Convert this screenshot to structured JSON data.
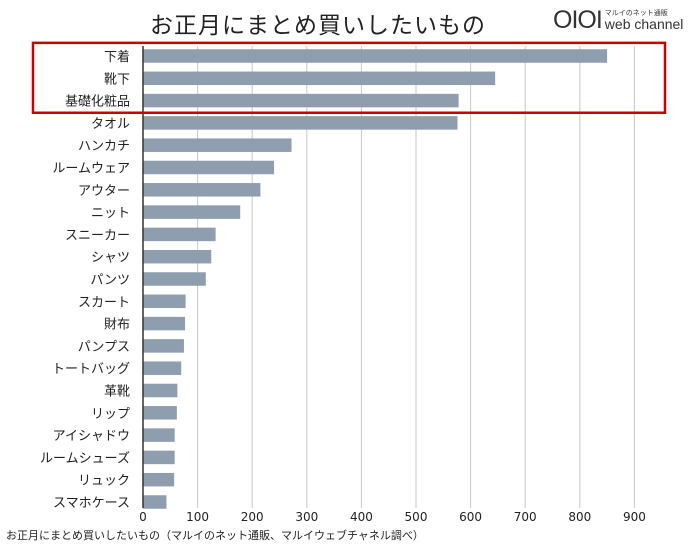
{
  "header": {
    "title": "お正月にまとめ買いしたいもの",
    "logo_mark": "OIOI",
    "logo_sub": "マルイのネット通販",
    "logo_main": "web channel"
  },
  "caption": "お正月にまとめ買いしたいもの（マルイのネット通販、マルイウェブチャネル調べ）",
  "colors": {
    "bar": "#8e9eae",
    "grid": "#c8c8c8",
    "highlight": "#cc0000"
  },
  "chart_data": {
    "type": "bar",
    "orientation": "horizontal",
    "title": "お正月にまとめ買いしたいもの",
    "categories": [
      "下着",
      "靴下",
      "基礎化粧品",
      "タオル",
      "ハンカチ",
      "ルームウェア",
      "アウター",
      "ニット",
      "スニーカー",
      "シャツ",
      "パンツ",
      "スカート",
      "財布",
      "パンプス",
      "トートバッグ",
      "革靴",
      "リップ",
      "アイシャドウ",
      "ルームシューズ",
      "リュック",
      "スマホケース"
    ],
    "values": [
      850,
      645,
      578,
      576,
      272,
      240,
      215,
      178,
      133,
      125,
      115,
      78,
      77,
      75,
      70,
      63,
      62,
      58,
      58,
      57,
      43
    ],
    "xlim": [
      0,
      900
    ],
    "xticks": [
      "0",
      "100",
      "200",
      "300",
      "400",
      "500",
      "600",
      "700",
      "800",
      "900"
    ],
    "grid": true,
    "highlighted": [
      "下着",
      "靴下",
      "基礎化粧品"
    ]
  }
}
